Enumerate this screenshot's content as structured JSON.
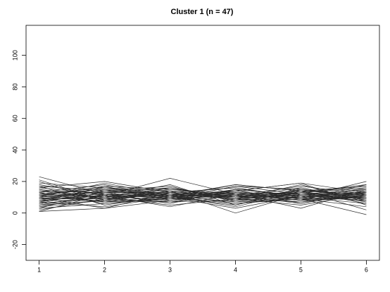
{
  "chart_data": {
    "type": "line",
    "title": "Cluster 1 (n = 47)",
    "x": [
      1,
      2,
      3,
      4,
      5,
      6
    ],
    "xlim": [
      0.8,
      6.2
    ],
    "xticks": [
      1,
      2,
      3,
      4,
      5,
      6
    ],
    "ylim": [
      -30,
      119
    ],
    "yticks": [
      -20,
      0,
      20,
      40,
      60,
      80,
      100
    ],
    "color": "#2a2a2a",
    "series": [
      {
        "values": [
          23,
          12,
          9,
          15,
          11,
          8
        ]
      },
      {
        "values": [
          21,
          8,
          14,
          10,
          13,
          18
        ]
      },
      {
        "values": [
          19,
          16,
          10,
          6,
          9,
          15
        ]
      },
      {
        "values": [
          18,
          11,
          22,
          12,
          8,
          10
        ]
      },
      {
        "values": [
          17,
          5,
          11,
          18,
          14,
          6
        ]
      },
      {
        "values": [
          16,
          20,
          13,
          9,
          5,
          12
        ]
      },
      {
        "values": [
          15,
          9,
          7,
          14,
          19,
          13
        ]
      },
      {
        "values": [
          14,
          13,
          16,
          8,
          10,
          20
        ]
      },
      {
        "values": [
          13,
          6,
          9,
          17,
          12,
          9
        ]
      },
      {
        "values": [
          12,
          15,
          12,
          11,
          7,
          14
        ]
      },
      {
        "values": [
          12,
          10,
          18,
          5,
          15,
          11
        ]
      },
      {
        "values": [
          11,
          17,
          8,
          13,
          9,
          16
        ]
      },
      {
        "values": [
          11,
          7,
          14,
          10,
          16,
          8
        ]
      },
      {
        "values": [
          10,
          12,
          6,
          15,
          11,
          10
        ]
      },
      {
        "values": [
          10,
          14,
          11,
          7,
          13,
          17
        ]
      },
      {
        "values": [
          9,
          9,
          15,
          12,
          8,
          11
        ]
      },
      {
        "values": [
          9,
          11,
          10,
          18,
          14,
          7
        ]
      },
      {
        "values": [
          8,
          16,
          12,
          6,
          10,
          13
        ]
      },
      {
        "values": [
          8,
          8,
          7,
          11,
          17,
          12
        ]
      },
      {
        "values": [
          7,
          13,
          13,
          9,
          12,
          15
        ]
      },
      {
        "values": [
          7,
          4,
          10,
          14,
          9,
          10
        ]
      },
      {
        "values": [
          6,
          10,
          16,
          10,
          11,
          9
        ]
      },
      {
        "values": [
          6,
          15,
          9,
          13,
          8,
          14
        ]
      },
      {
        "values": [
          5,
          12,
          11,
          4,
          14,
          12
        ]
      },
      {
        "values": [
          5,
          8,
          13,
          16,
          10,
          6
        ]
      },
      {
        "values": [
          4,
          11,
          8,
          12,
          13,
          16
        ]
      },
      {
        "values": [
          3,
          14,
          12,
          9,
          7,
          11
        ]
      },
      {
        "values": [
          3,
          6,
          10,
          13,
          12,
          13
        ]
      },
      {
        "values": [
          2,
          9,
          14,
          8,
          15,
          10
        ]
      },
      {
        "values": [
          1,
          12,
          9,
          11,
          10,
          8
        ]
      },
      {
        "values": [
          1,
          3,
          8,
          15,
          6,
          14
        ]
      },
      {
        "values": [
          13,
          18,
          10,
          3,
          11,
          12
        ]
      },
      {
        "values": [
          15,
          10,
          5,
          9,
          18,
          7
        ]
      },
      {
        "values": [
          10,
          3,
          13,
          16,
          9,
          4
        ]
      },
      {
        "values": [
          12,
          16,
          14,
          0,
          12,
          11
        ]
      },
      {
        "values": [
          8,
          11,
          4,
          12,
          3,
          15
        ]
      },
      {
        "values": [
          20,
          7,
          11,
          10,
          14,
          2
        ]
      },
      {
        "values": [
          9,
          14,
          17,
          7,
          9,
          -1
        ]
      },
      {
        "values": [
          14,
          9,
          12,
          13,
          8,
          18
        ]
      },
      {
        "values": [
          11,
          13,
          9,
          17,
          15,
          9
        ]
      },
      {
        "values": [
          7,
          17,
          15,
          10,
          10,
          12
        ]
      },
      {
        "values": [
          16,
          12,
          7,
          8,
          13,
          10
        ]
      },
      {
        "values": [
          6,
          10,
          12,
          14,
          19,
          5
        ]
      },
      {
        "values": [
          13,
          7,
          9,
          11,
          6,
          13
        ]
      },
      {
        "values": [
          10,
          19,
          11,
          12,
          11,
          9
        ]
      },
      {
        "values": [
          4,
          8,
          16,
          9,
          14,
          17
        ]
      },
      {
        "values": [
          17,
          14,
          10,
          5,
          16,
          8
        ]
      }
    ]
  }
}
